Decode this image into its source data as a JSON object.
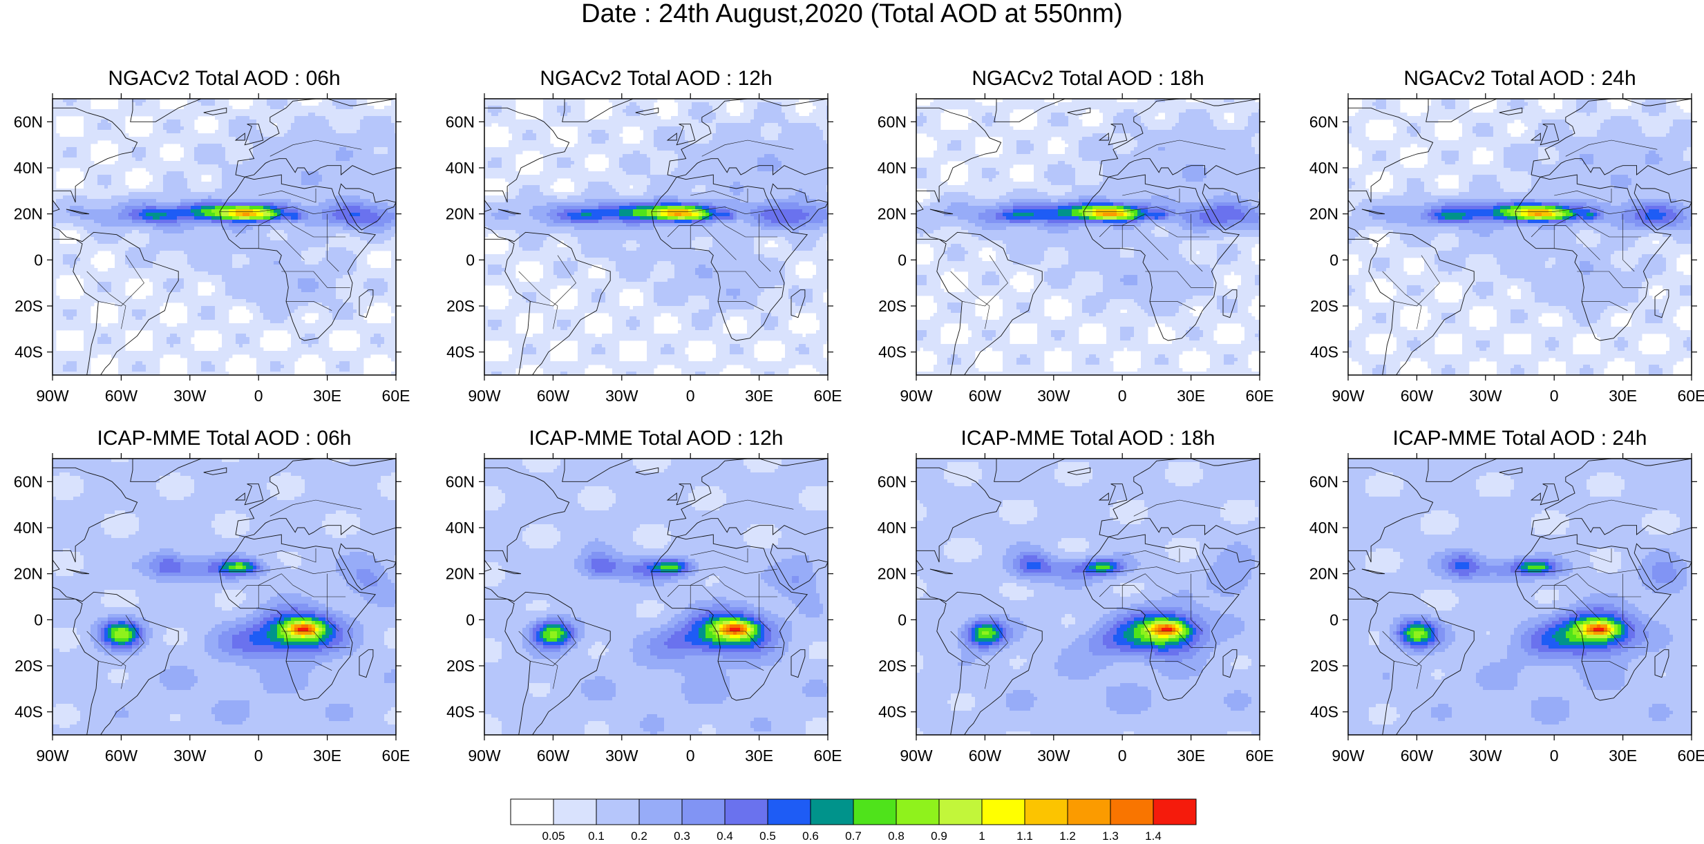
{
  "title": "Date : 24th August,2020 (Total AOD at 550nm)",
  "panels": [
    {
      "title": "NGACv2 Total AOD : 06h",
      "model": "NGACv2",
      "pattern": "ngac"
    },
    {
      "title": "NGACv2 Total AOD : 12h",
      "model": "NGACv2",
      "pattern": "ngac"
    },
    {
      "title": "NGACv2 Total AOD : 18h",
      "model": "NGACv2",
      "pattern": "ngac"
    },
    {
      "title": "NGACv2 Total AOD : 24h",
      "model": "NGACv2",
      "pattern": "ngac"
    },
    {
      "title": "ICAP-MME Total AOD : 06h",
      "model": "ICAP-MME",
      "pattern": "icap"
    },
    {
      "title": "ICAP-MME Total AOD : 12h",
      "model": "ICAP-MME",
      "pattern": "icap"
    },
    {
      "title": "ICAP-MME Total AOD : 18h",
      "model": "ICAP-MME",
      "pattern": "icap"
    },
    {
      "title": "ICAP-MME Total AOD : 24h",
      "model": "ICAP-MME",
      "pattern": "icap"
    }
  ],
  "map_extent": {
    "lon": [
      -90,
      60
    ],
    "lat": [
      -50,
      70
    ]
  },
  "lat_ticks": [
    {
      "value": 60,
      "label": "60N"
    },
    {
      "value": 40,
      "label": "40N"
    },
    {
      "value": 20,
      "label": "20N"
    },
    {
      "value": 0,
      "label": "0"
    },
    {
      "value": -20,
      "label": "20S"
    },
    {
      "value": -40,
      "label": "40S"
    }
  ],
  "lon_ticks": [
    {
      "value": -90,
      "label": "90W"
    },
    {
      "value": -60,
      "label": "60W"
    },
    {
      "value": -30,
      "label": "30W"
    },
    {
      "value": 0,
      "label": "0"
    },
    {
      "value": 30,
      "label": "30E"
    },
    {
      "value": 60,
      "label": "60E"
    }
  ],
  "colorbar": {
    "levels": [
      "0.05",
      "0.1",
      "0.2",
      "0.3",
      "0.4",
      "0.5",
      "0.6",
      "0.7",
      "0.8",
      "0.9",
      "1",
      "1.1",
      "1.2",
      "1.3",
      "1.4"
    ],
    "colors": [
      "#ffffff",
      "#d9e2fd",
      "#b6c6fb",
      "#97acf8",
      "#8194f4",
      "#6a72ee",
      "#1e5cf5",
      "#00938b",
      "#4fe31b",
      "#8ff21c",
      "#c2f63a",
      "#ffff00",
      "#fcc400",
      "#fb9b00",
      "#f97500",
      "#f51b0c"
    ]
  },
  "chart_data": {
    "type": "heatmap",
    "title": "Date : 24th August,2020 (Total AOD at 550nm)",
    "xlabel": "",
    "ylabel": "",
    "x_range": [
      -90,
      60
    ],
    "y_range": [
      -50,
      70
    ],
    "features": [
      {
        "panels": "NGACv2",
        "feature": "Saharan dust plume along 15N-25N",
        "lon_range": [
          -50,
          60
        ],
        "peak_aod": 1.1
      },
      {
        "panels": "ICAP-MME",
        "feature": "Central African smoke",
        "center_lon": 20,
        "center_lat": -5,
        "peak_aod": 1.4
      },
      {
        "panels": "ICAP-MME",
        "feature": "Amazon smoke",
        "center_lon": -60,
        "center_lat": -5,
        "peak_aod": 1.0
      },
      {
        "panels": "ICAP-MME",
        "feature": "Saharan dust plume",
        "center_lon": -15,
        "center_lat": 20,
        "peak_aod": 0.9
      }
    ]
  }
}
